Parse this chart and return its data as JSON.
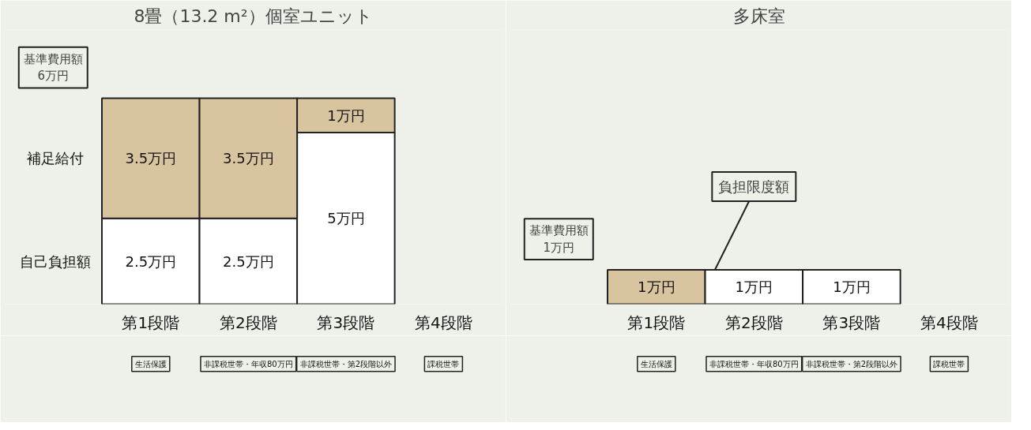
{
  "chart_data": [
    {
      "type": "bar",
      "title": "8畳（13.2 m²）個室ユニット",
      "categories": [
        "第1段階",
        "第2段階",
        "第3段階",
        "第4段階"
      ],
      "stacked": true,
      "ylim": [
        0,
        8
      ],
      "tick_labels": "x",
      "grid": false,
      "series": [
        {
          "name": "自己負担額",
          "color": "#ffffff",
          "values": [
            2.5,
            2.5,
            5,
            null
          ],
          "value_labels": [
            "2.5万円",
            "2.5万円",
            "5万円",
            null
          ]
        },
        {
          "name": "補足給付",
          "color": "#d9c4a0",
          "values": [
            3.5,
            3.5,
            1,
            null
          ],
          "value_labels": [
            "3.5万円",
            "3.5万円",
            "1万円",
            null
          ]
        }
      ],
      "annotations": [
        "基準費用額\n6万円",
        "生活保護",
        "非課税世帯・年収80万円",
        "非課税世帯・第2段階以外",
        "課税世帯"
      ]
    },
    {
      "type": "bar",
      "title": "多床室",
      "categories": [
        "第1段階",
        "第2段階",
        "第3段階",
        "第4段階"
      ],
      "stacked": true,
      "ylim": [
        0,
        8
      ],
      "tick_labels": "x",
      "grid": false,
      "series": [
        {
          "color": "#d9c4a0",
          "values": [
            1,
            null,
            null,
            null
          ],
          "value_labels": [
            "1万円",
            null,
            null,
            null
          ]
        },
        {
          "color": "#ffffff",
          "values": [
            null,
            1,
            1,
            null
          ],
          "value_labels": [
            null,
            "1万円",
            "1万円",
            null
          ]
        }
      ],
      "annotations": [
        "基準費用額\n1万円",
        "負担限度額",
        "生活保護",
        "非課税世帯・年収80万円",
        "非課税世帯・第2段階以外",
        "課税世帯"
      ]
    }
  ]
}
